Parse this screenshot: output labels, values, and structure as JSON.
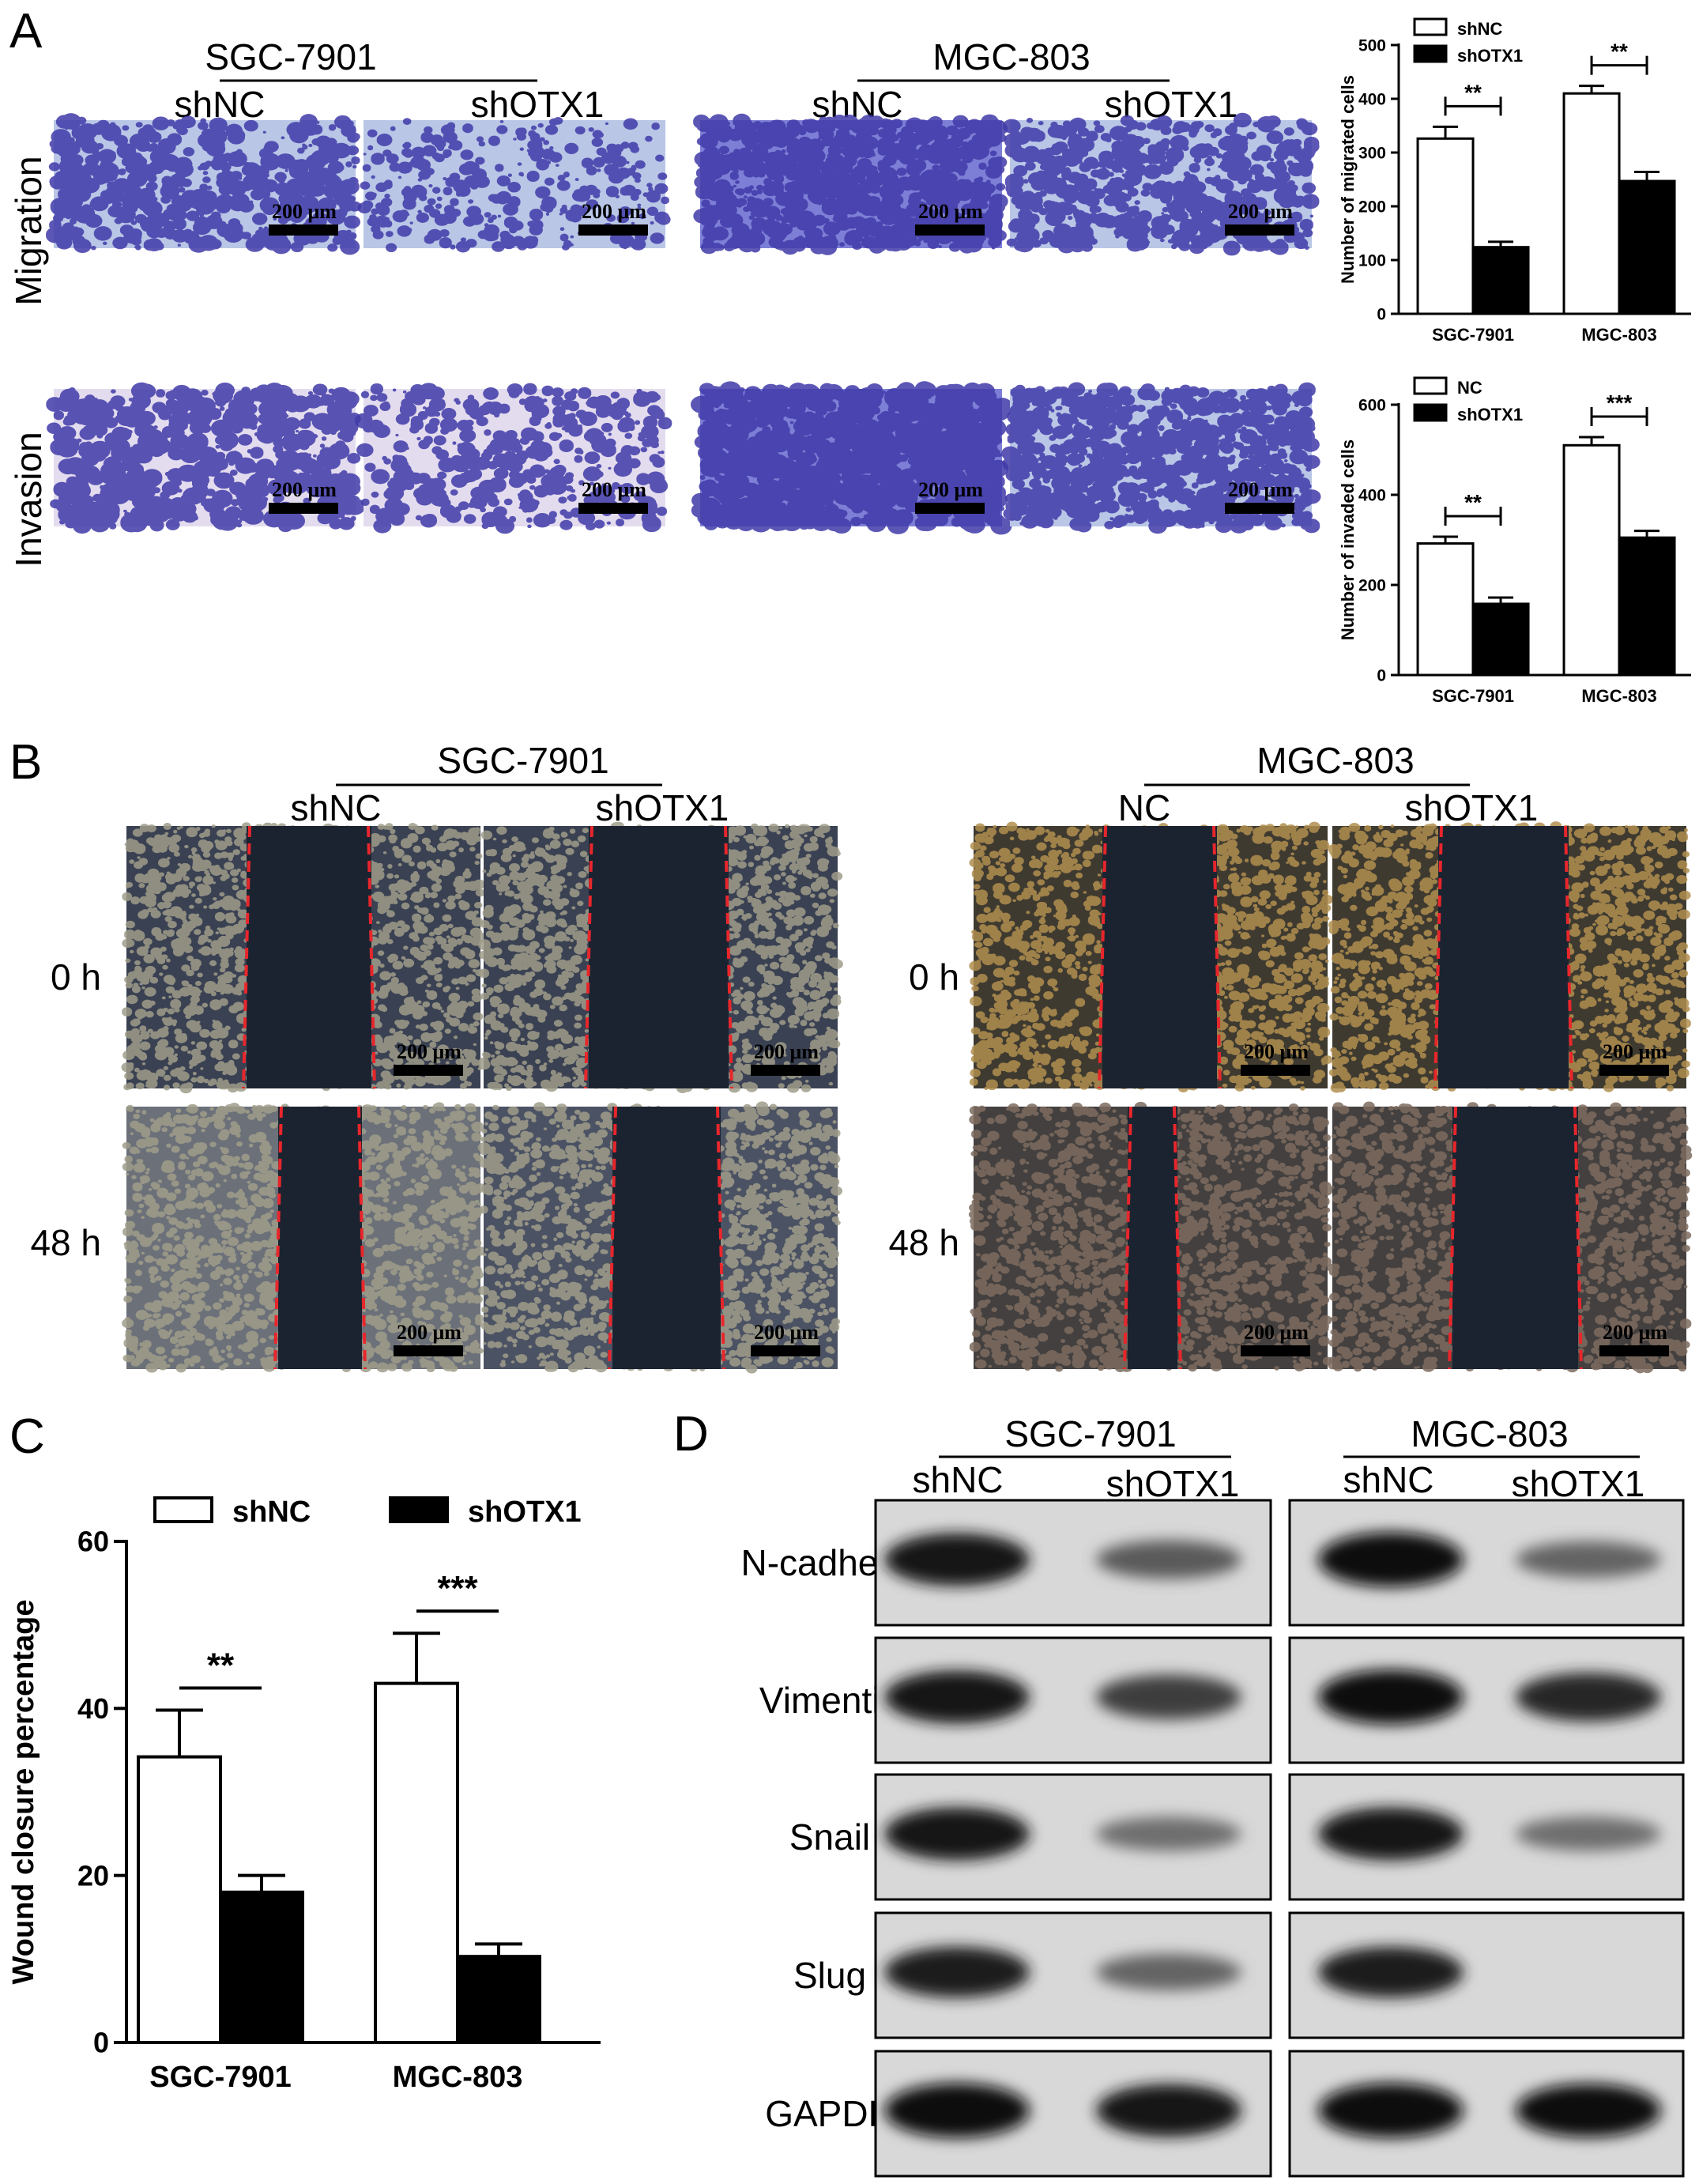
{
  "panels": {
    "A": {
      "letter": "A",
      "groups": [
        {
          "title": "SGC-7901",
          "conditions": [
            "shNC",
            "shOTX1"
          ]
        },
        {
          "title": "MGC-803",
          "conditions": [
            "shNC",
            "shOTX1"
          ]
        }
      ],
      "row_labels": [
        "Migration",
        "Invasion"
      ],
      "scale_bar": "200 μm",
      "image_colors": {
        "background": "#b9c6e6",
        "cells": "#3f3aa8",
        "invasion_bg": "#e3dcee",
        "dense_bg": "#7d7fd6"
      }
    },
    "B": {
      "letter": "B",
      "groups": [
        {
          "title": "SGC-7901",
          "conditions": [
            "shNC",
            "shOTX1"
          ]
        },
        {
          "title": "MGC-803",
          "conditions": [
            "NC",
            "shOTX1"
          ]
        }
      ],
      "row_labels": [
        "0 h",
        "48 h"
      ],
      "scale_bar": "200 μm",
      "image_colors": {
        "sgc_cells": "#9f9c89",
        "mgc_cells": "#b08e4f",
        "mgc_48h_cells": "#7c6b5f",
        "gap": "#1b2331",
        "edge_line": "#e8262b"
      }
    },
    "C": {
      "letter": "C"
    },
    "D": {
      "letter": "D",
      "groups": [
        {
          "title": "SGC-7901",
          "conditions": [
            "shNC",
            "shOTX1"
          ]
        },
        {
          "title": "MGC-803",
          "conditions": [
            "shNC",
            "shOTX1"
          ]
        }
      ],
      "proteins": [
        "N-cadherin",
        "Vimentin",
        "Snail",
        "Slug",
        "GAPDH"
      ],
      "band_intensity": [
        [
          [
            0.9,
            0.55
          ],
          [
            0.95,
            0.5
          ]
        ],
        [
          [
            0.9,
            0.7
          ],
          [
            0.95,
            0.8
          ]
        ],
        [
          [
            0.9,
            0.45
          ],
          [
            0.9,
            0.45
          ]
        ],
        [
          [
            0.85,
            0.5
          ],
          [
            0.85,
            0.0
          ]
        ],
        [
          [
            0.95,
            0.9
          ],
          [
            0.95,
            0.92
          ]
        ]
      ]
    }
  },
  "chart_data": [
    {
      "id": "A-migration",
      "type": "bar",
      "categories": [
        "SGC-7901",
        "MGC-803"
      ],
      "series": [
        {
          "name": "shNC",
          "values": [
            326,
            410
          ],
          "errors": [
            22,
            14
          ],
          "fill": "#ffffff"
        },
        {
          "name": "shOTX1",
          "values": [
            124,
            247
          ],
          "errors": [
            10,
            17
          ],
          "fill": "#000000"
        }
      ],
      "ylabel": "Number of migrated cells",
      "ylim": [
        0,
        500
      ],
      "yticks": [
        0,
        100,
        200,
        300,
        400,
        500
      ],
      "significance": [
        "**",
        "**"
      ],
      "legend": "top-left"
    },
    {
      "id": "A-invasion",
      "type": "bar",
      "categories": [
        "SGC-7901",
        "MGC-803"
      ],
      "series": [
        {
          "name": "NC",
          "values": [
            292,
            510
          ],
          "errors": [
            15,
            18
          ],
          "fill": "#ffffff"
        },
        {
          "name": "shOTX1",
          "values": [
            158,
            305
          ],
          "errors": [
            14,
            15
          ],
          "fill": "#000000"
        }
      ],
      "ylabel": "Number of invaded cells",
      "ylim": [
        0,
        600
      ],
      "yticks": [
        0,
        200,
        400,
        600
      ],
      "significance": [
        "**",
        "***"
      ],
      "legend": "top-left"
    },
    {
      "id": "C-wound",
      "type": "bar",
      "categories": [
        "SGC-7901",
        "MGC-803"
      ],
      "series": [
        {
          "name": "shNC",
          "values": [
            34.2,
            43.0
          ],
          "errors": [
            5.6,
            6.0
          ],
          "fill": "#ffffff"
        },
        {
          "name": "shOTX1",
          "values": [
            18.0,
            10.3
          ],
          "errors": [
            2.0,
            1.5
          ],
          "fill": "#000000"
        }
      ],
      "ylabel": "Wound closure percentage",
      "ylim": [
        0,
        60
      ],
      "yticks": [
        0,
        20,
        40,
        60
      ],
      "significance": [
        "**",
        "***"
      ],
      "legend": "top-horizontal"
    }
  ]
}
